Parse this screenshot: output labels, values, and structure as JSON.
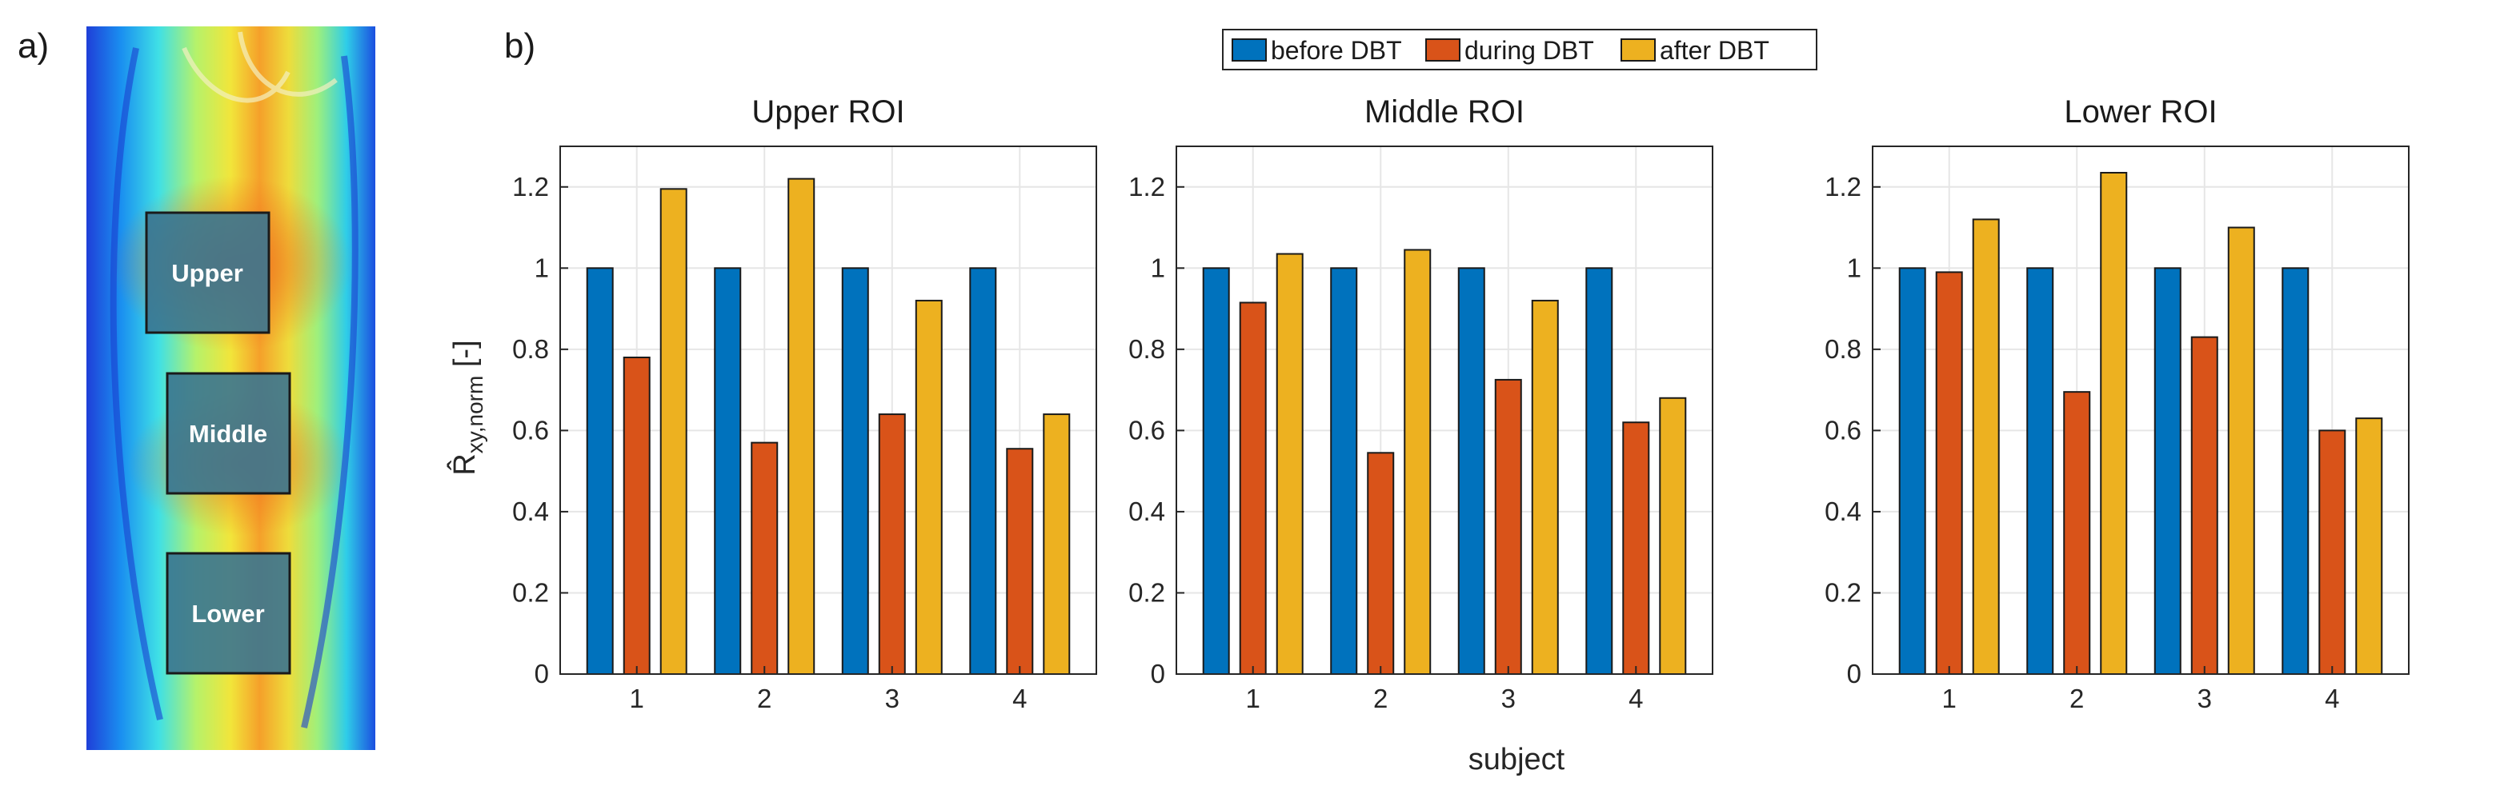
{
  "panel_labels": {
    "a": "a)",
    "b": "b)"
  },
  "colors": {
    "before": "#0072BD",
    "during": "#D95319",
    "after": "#EDB120",
    "grid": "#e6e6e6",
    "axis": "#262626"
  },
  "image_panel": {
    "roi_labels": [
      "Upper",
      "Middle",
      "Lower"
    ]
  },
  "legend": [
    "before DBT",
    "during DBT",
    "after DBT"
  ],
  "ylabel": {
    "symbol": "R̂",
    "subscript": "xy,norm",
    "unit": " [-]"
  },
  "xlabel": "subject",
  "chart_data": [
    {
      "type": "bar",
      "title": "Upper ROI",
      "categories": [
        "1",
        "2",
        "3",
        "4"
      ],
      "series": [
        {
          "name": "before DBT",
          "values": [
            1.0,
            1.0,
            1.0,
            1.0
          ]
        },
        {
          "name": "during DBT",
          "values": [
            0.78,
            0.57,
            0.64,
            0.555
          ]
        },
        {
          "name": "after DBT",
          "values": [
            1.195,
            1.22,
            0.92,
            0.64
          ]
        }
      ],
      "ylim": [
        0,
        1.3
      ],
      "yticks": [
        "0",
        "0.2",
        "0.4",
        "0.6",
        "0.8",
        "1",
        "1.2"
      ],
      "grid": true
    },
    {
      "type": "bar",
      "title": "Middle ROI",
      "categories": [
        "1",
        "2",
        "3",
        "4"
      ],
      "series": [
        {
          "name": "before DBT",
          "values": [
            1.0,
            1.0,
            1.0,
            1.0
          ]
        },
        {
          "name": "during DBT",
          "values": [
            0.915,
            0.545,
            0.725,
            0.62
          ]
        },
        {
          "name": "after DBT",
          "values": [
            1.035,
            1.045,
            0.92,
            0.68
          ]
        }
      ],
      "ylim": [
        0,
        1.3
      ],
      "yticks": [
        "0",
        "0.2",
        "0.4",
        "0.6",
        "0.8",
        "1",
        "1.2"
      ],
      "grid": true
    },
    {
      "type": "bar",
      "title": "Lower ROI",
      "categories": [
        "1",
        "2",
        "3",
        "4"
      ],
      "series": [
        {
          "name": "before DBT",
          "values": [
            1.0,
            1.0,
            1.0,
            1.0
          ]
        },
        {
          "name": "during DBT",
          "values": [
            0.99,
            0.695,
            0.83,
            0.6
          ]
        },
        {
          "name": "after DBT",
          "values": [
            1.12,
            1.235,
            1.1,
            0.63
          ]
        }
      ],
      "ylim": [
        0,
        1.3
      ],
      "yticks": [
        "0",
        "0.2",
        "0.4",
        "0.6",
        "0.8",
        "1",
        "1.2"
      ],
      "grid": true
    }
  ]
}
